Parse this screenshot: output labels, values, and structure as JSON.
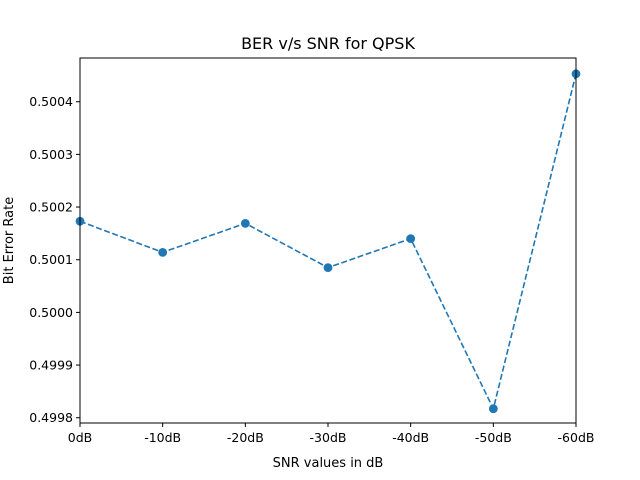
{
  "chart_data": {
    "type": "line",
    "title": "BER v/s SNR for QPSK",
    "xlabel": "SNR values in dB",
    "ylabel": "Bit Error Rate",
    "categories": [
      "0dB",
      "-10dB",
      "-20dB",
      "-30dB",
      "-40dB",
      "-50dB",
      "-60dB"
    ],
    "series": [
      {
        "values": [
          0.500173,
          0.500114,
          0.500169,
          0.500085,
          0.50014,
          0.499817,
          0.500453
        ],
        "color": "#1f77b4",
        "line_style": "dashed",
        "marker": "circle"
      }
    ],
    "ylim": [
      0.49979,
      0.500483
    ],
    "yticks": [
      0.4998,
      0.4999,
      0.5,
      0.5001,
      0.5002,
      0.5003,
      0.5004
    ],
    "ytick_labels": [
      "0.4998",
      "0.4999",
      "0.5000",
      "0.5001",
      "0.5002",
      "0.5003",
      "0.5004"
    ],
    "grid": false,
    "legend": false
  }
}
